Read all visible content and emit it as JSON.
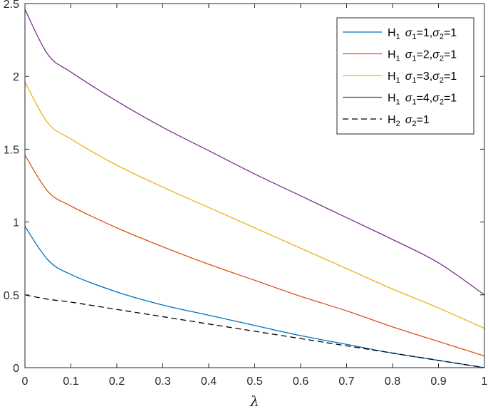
{
  "chart_data": {
    "type": "line",
    "xlabel": "λ",
    "ylabel": "",
    "title": "",
    "xlim": [
      0,
      1
    ],
    "ylim": [
      0,
      2.5
    ],
    "xticks": [
      "0",
      "0.1",
      "0.2",
      "0.3",
      "0.4",
      "0.5",
      "0.6",
      "0.7",
      "0.8",
      "0.9",
      "1"
    ],
    "yticks": [
      "0",
      "0.5",
      "1",
      "1.5",
      "2",
      "2.5"
    ],
    "legend_position": "top-right",
    "grid": false,
    "x": [
      0,
      0.05,
      0.1,
      0.2,
      0.3,
      0.4,
      0.5,
      0.6,
      0.7,
      0.8,
      0.9,
      1.0
    ],
    "series": [
      {
        "name": "H1 σ1=1,σ2=1",
        "legend": {
          "main": "H",
          "sub1": "1",
          "sigma1_label": "σ",
          "sigma1_sub": "1",
          "sigma1_value": "=1,",
          "sigma2_label": "σ",
          "sigma2_sub": "2",
          "sigma2_value": "=1"
        },
        "color": "#0072BD",
        "dash": "solid",
        "values": [
          0.97,
          0.74,
          0.64,
          0.52,
          0.43,
          0.36,
          0.29,
          0.22,
          0.16,
          0.1,
          0.05,
          0.0
        ]
      },
      {
        "name": "H1 σ1=2,σ2=1",
        "legend": {
          "main": "H",
          "sub1": "1",
          "sigma1_label": "σ",
          "sigma1_sub": "1",
          "sigma1_value": "=2,",
          "sigma2_label": "σ",
          "sigma2_sub": "2",
          "sigma2_value": "=1"
        },
        "color": "#D95319",
        "dash": "solid",
        "values": [
          1.46,
          1.21,
          1.11,
          0.96,
          0.83,
          0.71,
          0.6,
          0.49,
          0.39,
          0.28,
          0.18,
          0.08
        ]
      },
      {
        "name": "H1 σ1=3,σ2=1",
        "legend": {
          "main": "H",
          "sub1": "1",
          "sigma1_label": "σ",
          "sigma1_sub": "1",
          "sigma1_value": "=3,",
          "sigma2_label": "σ",
          "sigma2_sub": "2",
          "sigma2_value": "=1"
        },
        "color": "#EDB120",
        "dash": "solid",
        "values": [
          1.96,
          1.68,
          1.57,
          1.39,
          1.24,
          1.1,
          0.96,
          0.82,
          0.68,
          0.54,
          0.41,
          0.27
        ]
      },
      {
        "name": "H1 σ1=4,σ2=1",
        "legend": {
          "main": "H",
          "sub1": "1",
          "sigma1_label": "σ",
          "sigma1_sub": "1",
          "sigma1_value": "=4,",
          "sigma2_label": "σ",
          "sigma2_sub": "2",
          "sigma2_value": "=1"
        },
        "color": "#7E2F8E",
        "dash": "solid",
        "values": [
          2.46,
          2.15,
          2.03,
          1.83,
          1.65,
          1.49,
          1.33,
          1.18,
          1.03,
          0.88,
          0.72,
          0.5
        ]
      },
      {
        "name": "H2 σ2=1",
        "legend": {
          "main": "H",
          "sub1": "2",
          "sigma1_label": "",
          "sigma1_sub": "",
          "sigma1_value": "",
          "sigma2_label": "σ",
          "sigma2_sub": "2",
          "sigma2_value": "=1"
        },
        "color": "#000000",
        "dash": "dashed",
        "values": [
          0.5,
          0.47,
          0.45,
          0.4,
          0.35,
          0.3,
          0.25,
          0.2,
          0.15,
          0.1,
          0.05,
          0.0
        ]
      }
    ]
  }
}
